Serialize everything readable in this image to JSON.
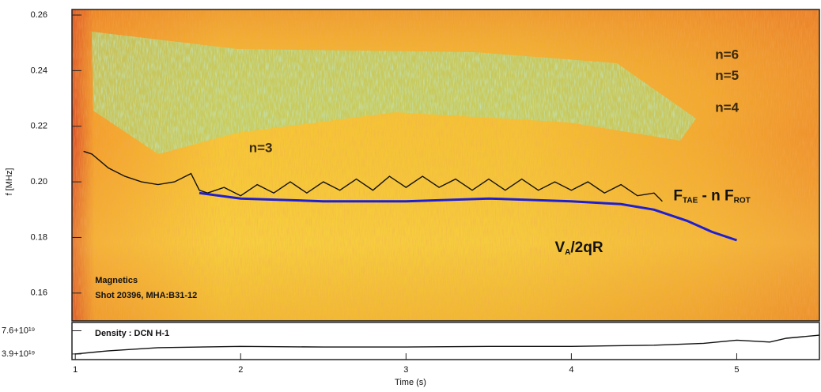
{
  "chart_data": [
    {
      "type": "line",
      "x_label": "Time (s)",
      "y_label": "f [MHz]",
      "xlim": [
        0.98,
        5.5
      ],
      "ylim": [
        0.15,
        0.262
      ],
      "yticks": [
        0.16,
        0.18,
        {
          "value": 0.2,
          "label": "0.20"
        },
        0.22,
        0.24,
        0.26
      ],
      "series": [
        {
          "name": [
            "F",
            "TAE",
            " - n F",
            "ROT"
          ],
          "color": "#111111",
          "x": [
            1.05,
            1.1,
            1.2,
            1.3,
            1.4,
            1.5,
            1.6,
            1.7,
            1.75,
            1.8,
            1.9,
            2.0,
            2.1,
            2.2,
            2.3,
            2.4,
            2.5,
            2.6,
            2.7,
            2.8,
            2.9,
            3.0,
            3.1,
            3.2,
            3.3,
            3.4,
            3.5,
            3.6,
            3.7,
            3.8,
            3.9,
            4.0,
            4.1,
            4.2,
            4.3,
            4.4,
            4.5,
            4.55
          ],
          "values": [
            0.211,
            0.21,
            0.205,
            0.202,
            0.2,
            0.199,
            0.2,
            0.203,
            0.197,
            0.196,
            0.198,
            0.195,
            0.199,
            0.196,
            0.2,
            0.196,
            0.2,
            0.197,
            0.201,
            0.197,
            0.202,
            0.198,
            0.202,
            0.198,
            0.201,
            0.197,
            0.201,
            0.197,
            0.201,
            0.197,
            0.2,
            0.197,
            0.2,
            0.196,
            0.199,
            0.195,
            0.196,
            0.193
          ]
        },
        {
          "name": [
            "V",
            "A",
            "/2qR"
          ],
          "color": "#1f1fd0",
          "x": [
            1.75,
            2.0,
            2.5,
            3.0,
            3.5,
            4.0,
            4.3,
            4.5,
            4.7,
            4.85,
            5.0
          ],
          "values": [
            0.196,
            0.194,
            0.193,
            0.193,
            0.194,
            0.193,
            0.192,
            0.19,
            0.186,
            0.182,
            0.179
          ]
        }
      ],
      "annotations": [
        {
          "text": "n=6",
          "x": 4.87,
          "y": 0.2455
        },
        {
          "text": "n=5",
          "x": 4.87,
          "y": 0.238
        },
        {
          "text": "n=4",
          "x": 4.87,
          "y": 0.2265
        },
        {
          "text": "n=3",
          "x": 2.05,
          "y": 0.212
        },
        {
          "text": "Magnetics",
          "x": 1.12,
          "y": 0.1645
        },
        {
          "text": "Shot 20396, MHA:B31-12",
          "x": 1.12,
          "y": 0.159
        }
      ]
    },
    {
      "type": "line",
      "title": "Density : DCN H-1",
      "xlim": [
        0.98,
        5.5
      ],
      "xticks": [
        1,
        2,
        3,
        4,
        5
      ],
      "ylim": [
        3e+19,
        8.8e+19
      ],
      "yticks": [
        {
          "value": 3.9e+19,
          "label": "3.9+10¹⁹"
        },
        {
          "value": 7.6e+19,
          "label": "7.6+10¹⁹"
        }
      ],
      "series": [
        {
          "color": "#111111",
          "x": [
            1.0,
            1.2,
            1.5,
            2.0,
            2.5,
            3.0,
            3.5,
            4.0,
            4.5,
            4.8,
            5.0,
            5.2,
            5.3,
            5.5
          ],
          "values": [
            3.9e+19,
            4.4e+19,
            4.9e+19,
            5.1e+19,
            5e+19,
            5e+19,
            5.1e+19,
            5.1e+19,
            5.3e+19,
            5.6e+19,
            6.1e+19,
            5.8e+19,
            6.4e+19,
            6.9e+19
          ]
        }
      ]
    }
  ]
}
